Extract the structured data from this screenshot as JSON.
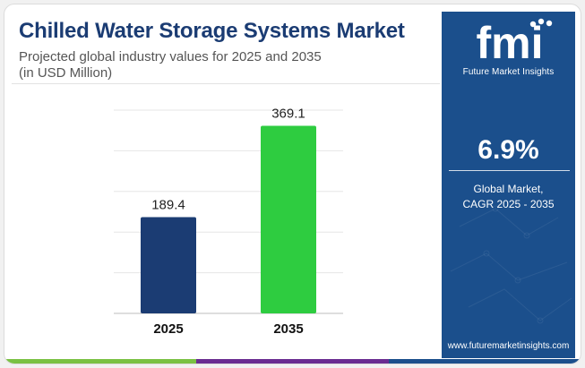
{
  "header": {
    "title": "Chilled Water Storage Systems Market",
    "subtitle_line1": "Projected global industry values for 2025 and 2035",
    "subtitle_line2": "(in USD Million)"
  },
  "chart_data": {
    "type": "bar",
    "categories": [
      "2025",
      "2035"
    ],
    "values": [
      189.4,
      369.1
    ],
    "value_labels": [
      "189.4",
      "369.1"
    ],
    "bar_colors": [
      "#1b3c73",
      "#2ecc40"
    ],
    "title": "Chilled Water Storage Systems Market",
    "subtitle": "Projected global industry values for 2025 and 2035 (in USD Million)",
    "xlabel": "",
    "ylabel": "",
    "ylim": [
      0,
      400
    ],
    "grid": true,
    "legend": "none"
  },
  "panel": {
    "logo_text": "fmi",
    "logo_caption": "Future Market Insights",
    "cagr_value": "6.9%",
    "cagr_label_line1": "Global Market,",
    "cagr_label_line2": "CAGR 2025 - 2035",
    "website": "www.futuremarketinsights.com",
    "background_color": "#1b4f8c"
  },
  "footer_bar_colors": [
    "#7ac143",
    "#6a2c91",
    "#1b4f8c"
  ]
}
